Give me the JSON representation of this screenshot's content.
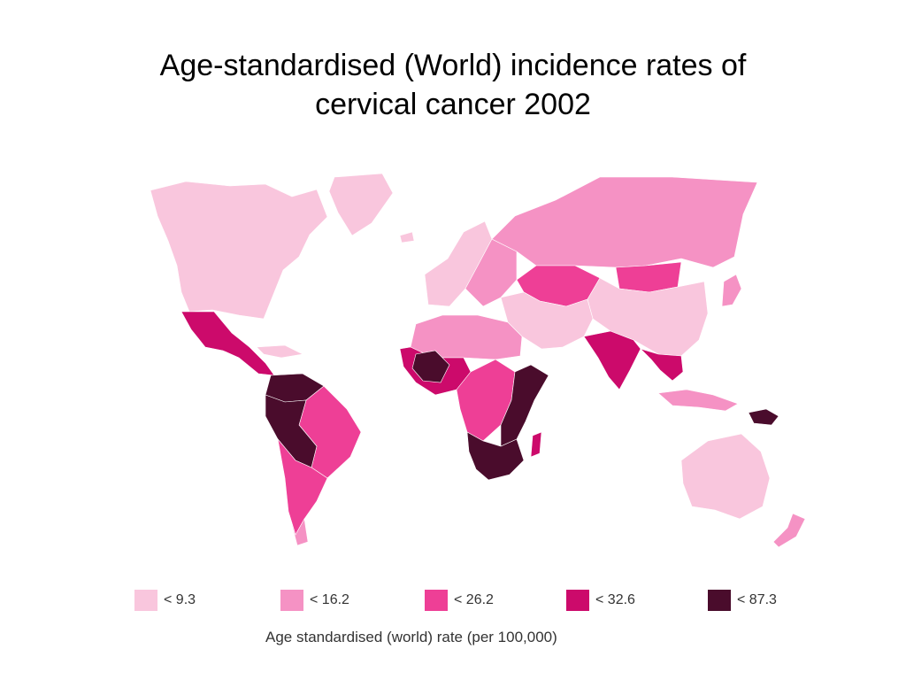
{
  "title": {
    "line1": "Age-standardised (World) incidence rates of",
    "line2": "cervical cancer 2002"
  },
  "legend": {
    "caption": "Age standardised (world) rate (per 100,000)",
    "classes": [
      {
        "label": "< 9.3",
        "color": "#f9c6dd"
      },
      {
        "label": "< 16.2",
        "color": "#f592c4"
      },
      {
        "label": "< 26.2",
        "color": "#ee3f96"
      },
      {
        "label": "< 32.6",
        "color": "#cc0a6b"
      },
      {
        "label": "< 87.3",
        "color": "#4a0c2c"
      }
    ]
  },
  "map": {
    "regions": [
      {
        "name": "North America",
        "class": 0
      },
      {
        "name": "Greenland",
        "class": 0
      },
      {
        "name": "Mexico and Central America",
        "class": 3
      },
      {
        "name": "Caribbean",
        "class": 0
      },
      {
        "name": "Colombia and Venezuela",
        "class": 4
      },
      {
        "name": "Peru and Bolivia",
        "class": 4
      },
      {
        "name": "Brazil",
        "class": 2
      },
      {
        "name": "Southern South America",
        "class": 2
      },
      {
        "name": "Patagonia",
        "class": 1
      },
      {
        "name": "Iceland",
        "class": 0
      },
      {
        "name": "Western Europe",
        "class": 0
      },
      {
        "name": "Eastern Europe",
        "class": 1
      },
      {
        "name": "Russia",
        "class": 1
      },
      {
        "name": "Central Asia",
        "class": 2
      },
      {
        "name": "Mongolia",
        "class": 2
      },
      {
        "name": "China",
        "class": 0
      },
      {
        "name": "Middle East",
        "class": 0
      },
      {
        "name": "North Africa",
        "class": 1
      },
      {
        "name": "West Africa",
        "class": 3
      },
      {
        "name": "Guinea Coast",
        "class": 4
      },
      {
        "name": "Central Africa",
        "class": 2
      },
      {
        "name": "East Africa",
        "class": 4
      },
      {
        "name": "Southern Africa",
        "class": 4
      },
      {
        "name": "Madagascar",
        "class": 3
      },
      {
        "name": "India",
        "class": 3
      },
      {
        "name": "Southeast Asia",
        "class": 3
      },
      {
        "name": "Indonesia",
        "class": 1
      },
      {
        "name": "New Guinea",
        "class": 4
      },
      {
        "name": "Japan",
        "class": 1
      },
      {
        "name": "Australia",
        "class": 0
      },
      {
        "name": "New Zealand",
        "class": 1
      }
    ]
  }
}
